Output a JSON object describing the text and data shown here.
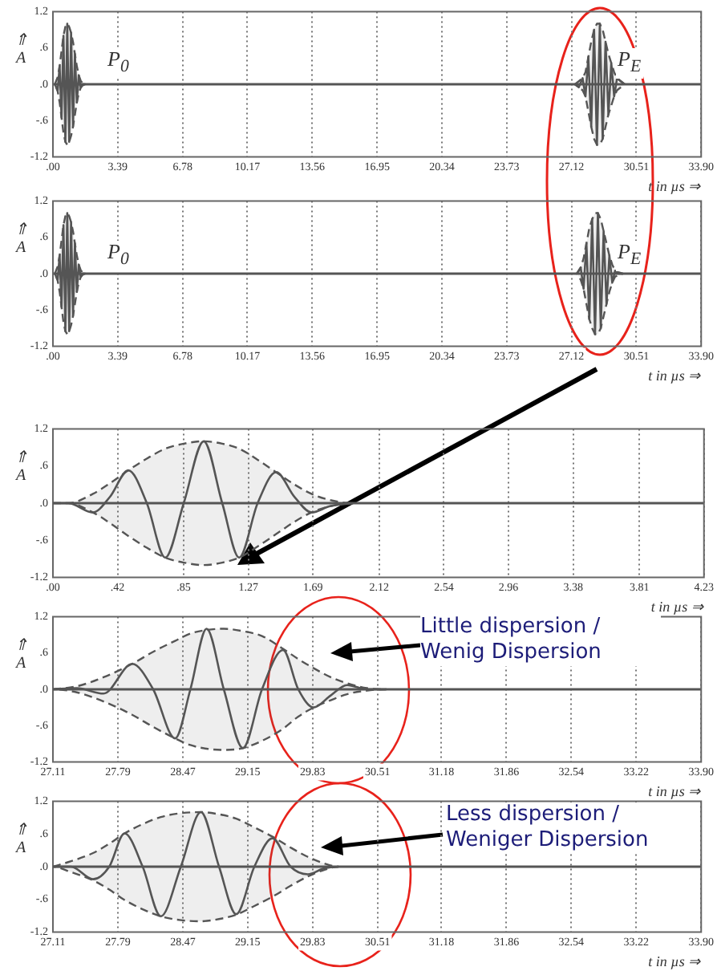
{
  "chart_data": [
    {
      "type": "line",
      "xlabel": "t in µs ⇒",
      "ylabel": "⇑ A",
      "xlim": [
        0,
        33.9
      ],
      "ylim": [
        -1.2,
        1.2
      ],
      "xticks": [
        {
          "value": 0,
          "label": ".00"
        },
        3.39,
        6.78,
        10.17,
        13.56,
        16.95,
        20.34,
        23.73,
        27.12,
        30.51,
        {
          "value": 33.9,
          "label": "33.90"
        }
      ],
      "yticks": [
        {
          "value": -1.2,
          "label": "-1.2"
        },
        {
          "value": -0.6,
          "label": "-.6"
        },
        {
          "value": 0,
          "label": ".0"
        },
        {
          "value": 0.6,
          "label": ".6"
        },
        {
          "value": 1.2,
          "label": "1.2"
        }
      ],
      "grid": "x",
      "ref_lines": [
        {
          "axis": "y",
          "value": 0,
          "color": "#555555"
        }
      ],
      "annotations": [
        "P$_{0}$",
        "P$_{E}$"
      ],
      "series": [
        {
          "color": "#555555",
          "x": [
            0.1,
            0.25,
            0.35,
            0.45,
            0.55,
            0.65,
            0.75,
            0.85,
            0.95,
            1.05,
            1.15,
            1.25,
            1.35,
            1.45,
            1.55,
            1.7
          ],
          "values": [
            0,
            -0.1,
            0.3,
            -0.55,
            0.8,
            -0.95,
            1.0,
            -0.95,
            0.85,
            -0.7,
            0.5,
            -0.3,
            0.15,
            -0.05,
            0,
            0
          ],
          "upper": [
            0,
            0.12,
            0.3,
            0.55,
            0.8,
            0.95,
            1.0,
            0.95,
            0.85,
            0.7,
            0.5,
            0.3,
            0.15,
            0.06,
            0.02,
            0
          ],
          "lower": [
            0,
            -0.12,
            -0.3,
            -0.55,
            -0.8,
            -0.95,
            -1.0,
            -0.95,
            -0.85,
            -0.7,
            -0.5,
            -0.3,
            -0.15,
            -0.06,
            -0.02,
            0
          ]
        },
        {
          "color": "#555555",
          "x": [
            27.3,
            27.5,
            27.7,
            27.85,
            28.0,
            28.15,
            28.3,
            28.45,
            28.6,
            28.75,
            28.9,
            29.05,
            29.2,
            29.35,
            29.5,
            29.7,
            29.9
          ],
          "values": [
            0,
            -0.05,
            0.1,
            -0.2,
            0.45,
            -0.7,
            0.9,
            -1.0,
            1.0,
            -0.9,
            0.7,
            -0.5,
            0.35,
            -0.2,
            0.1,
            0.05,
            0
          ],
          "upper": [
            0,
            0.05,
            0.1,
            0.2,
            0.45,
            0.7,
            0.9,
            1.0,
            1.0,
            0.9,
            0.7,
            0.5,
            0.35,
            0.2,
            0.1,
            0.05,
            0
          ],
          "lower": [
            0,
            -0.05,
            -0.1,
            -0.2,
            -0.45,
            -0.7,
            -0.9,
            -1.0,
            -1.0,
            -0.9,
            -0.7,
            -0.5,
            -0.35,
            -0.2,
            -0.1,
            -0.05,
            0
          ]
        }
      ]
    },
    {
      "type": "line",
      "xlabel": "t in µs ⇒",
      "ylabel": "⇑ A",
      "xlim": [
        0,
        33.9
      ],
      "ylim": [
        -1.2,
        1.2
      ],
      "xticks": [
        {
          "value": 0,
          "label": ".00"
        },
        3.39,
        6.78,
        10.17,
        13.56,
        16.95,
        20.34,
        23.73,
        27.12,
        30.51,
        {
          "value": 33.9,
          "label": "33.90"
        }
      ],
      "yticks": [
        {
          "value": -1.2,
          "label": "-1.2"
        },
        {
          "value": -0.6,
          "label": "-.6"
        },
        {
          "value": 0,
          "label": ".0"
        },
        {
          "value": 0.6,
          "label": ".6"
        },
        {
          "value": 1.2,
          "label": "1.2"
        }
      ],
      "grid": "x",
      "ref_lines": [
        {
          "axis": "y",
          "value": 0,
          "color": "#555555"
        }
      ],
      "annotations": [
        "P$_{0}$",
        "P$_{E}$"
      ],
      "series": [
        {
          "color": "#555555",
          "x": [
            0.1,
            0.25,
            0.35,
            0.45,
            0.55,
            0.65,
            0.75,
            0.85,
            0.95,
            1.05,
            1.15,
            1.25,
            1.35,
            1.45,
            1.55,
            1.7
          ],
          "values": [
            0,
            -0.1,
            0.3,
            -0.55,
            0.8,
            -0.95,
            1.0,
            -0.95,
            0.85,
            -0.7,
            0.5,
            -0.3,
            0.15,
            -0.05,
            0,
            0
          ],
          "upper": [
            0,
            0.12,
            0.3,
            0.55,
            0.8,
            0.95,
            1.0,
            0.95,
            0.85,
            0.7,
            0.5,
            0.3,
            0.15,
            0.06,
            0.02,
            0
          ],
          "lower": [
            0,
            -0.12,
            -0.3,
            -0.55,
            -0.8,
            -0.95,
            -1.0,
            -0.95,
            -0.85,
            -0.7,
            -0.5,
            -0.3,
            -0.15,
            -0.06,
            -0.02,
            0
          ]
        },
        {
          "color": "#555555",
          "x": [
            27.4,
            27.6,
            27.75,
            27.9,
            28.05,
            28.2,
            28.35,
            28.5,
            28.65,
            28.8,
            28.95,
            29.1,
            29.25,
            29.4,
            29.6,
            29.8
          ],
          "values": [
            0,
            0.1,
            -0.25,
            0.5,
            -0.75,
            0.9,
            -1.0,
            1.0,
            -0.9,
            0.7,
            -0.5,
            0.3,
            -0.15,
            0.05,
            0,
            0
          ],
          "upper": [
            0,
            0.1,
            0.25,
            0.5,
            0.75,
            0.9,
            1.0,
            1.0,
            0.9,
            0.7,
            0.5,
            0.3,
            0.15,
            0.05,
            0.02,
            0
          ],
          "lower": [
            0,
            -0.1,
            -0.25,
            -0.5,
            -0.75,
            -0.9,
            -1.0,
            -1.0,
            -0.9,
            -0.7,
            -0.5,
            -0.3,
            -0.15,
            -0.05,
            -0.02,
            0
          ]
        }
      ]
    },
    {
      "type": "line",
      "xlabel": "t in µs ⇒",
      "ylabel": "⇑ A",
      "xlim": [
        0,
        4.23
      ],
      "ylim": [
        -1.2,
        1.2
      ],
      "xticks": [
        {
          "value": 0,
          "label": ".00"
        },
        {
          "value": 0.42,
          "label": ".42"
        },
        {
          "value": 0.85,
          "label": ".85"
        },
        1.27,
        1.69,
        2.12,
        2.54,
        2.96,
        3.38,
        3.81,
        4.23
      ],
      "yticks": [
        {
          "value": -1.2,
          "label": "-1.2"
        },
        {
          "value": -0.6,
          "label": "-.6"
        },
        {
          "value": 0,
          "label": ".0"
        },
        {
          "value": 0.6,
          "label": ".6"
        },
        {
          "value": 1.2,
          "label": "1.2"
        }
      ],
      "grid": "x",
      "ref_lines": [
        {
          "axis": "y",
          "value": 0,
          "color": "#555555"
        }
      ],
      "series": [
        {
          "color": "#555555",
          "x": [
            0,
            0.1,
            0.26,
            0.37,
            0.49,
            0.61,
            0.73,
            0.85,
            0.98,
            1.1,
            1.21,
            1.33,
            1.45,
            1.57,
            1.68,
            1.8,
            1.95
          ],
          "values": [
            0,
            0,
            -0.15,
            0.1,
            0.53,
            0,
            -0.88,
            0,
            1.0,
            0,
            -0.88,
            0,
            0.5,
            0.1,
            -0.15,
            -0.05,
            0
          ],
          "upper": [
            0,
            0,
            0.15,
            0.32,
            0.53,
            0.72,
            0.88,
            0.96,
            1.0,
            0.96,
            0.88,
            0.7,
            0.5,
            0.3,
            0.15,
            0.05,
            0
          ],
          "lower": [
            0,
            0,
            -0.15,
            -0.32,
            -0.53,
            -0.72,
            -0.88,
            -0.96,
            -1.0,
            -0.96,
            -0.88,
            -0.7,
            -0.5,
            -0.3,
            -0.15,
            -0.05,
            0
          ]
        }
      ]
    },
    {
      "type": "line",
      "xlabel": "t in µs ⇒",
      "ylabel": "⇑ A",
      "xlim": [
        27.11,
        33.9
      ],
      "ylim": [
        -1.2,
        1.2
      ],
      "xticks": [
        27.11,
        27.79,
        28.47,
        29.15,
        29.83,
        30.51,
        31.18,
        31.86,
        32.54,
        33.22,
        {
          "value": 33.9,
          "label": "33.90"
        }
      ],
      "yticks": [
        {
          "value": -1.2,
          "label": "-1.2"
        },
        {
          "value": -0.6,
          "label": "-.6"
        },
        {
          "value": 0,
          "label": ".0"
        },
        {
          "value": 0.6,
          "label": ".6"
        },
        {
          "value": 1.2,
          "label": "1.2"
        }
      ],
      "grid": "x",
      "ref_lines": [
        {
          "axis": "y",
          "value": 0,
          "color": "#555555"
        }
      ],
      "annotations": [
        "Little dispersion / Wenig Dispersion"
      ],
      "series": [
        {
          "color": "#555555",
          "x": [
            27.11,
            27.36,
            27.64,
            27.94,
            28.16,
            28.39,
            28.55,
            28.72,
            28.9,
            29.1,
            29.3,
            29.52,
            29.68,
            29.84,
            30.02,
            30.19,
            30.4,
            30.6
          ],
          "values": [
            0,
            0.02,
            -0.07,
            0.42,
            0,
            -0.81,
            0,
            1.0,
            0,
            -0.97,
            0,
            0.65,
            0,
            -0.3,
            -0.1,
            0.07,
            0,
            0
          ],
          "upper": [
            0,
            0.05,
            0.2,
            0.42,
            0.62,
            0.8,
            0.92,
            0.98,
            1.0,
            0.96,
            0.88,
            0.67,
            0.5,
            0.35,
            0.2,
            0.1,
            0.02,
            0
          ],
          "lower": [
            0,
            -0.05,
            -0.2,
            -0.42,
            -0.62,
            -0.81,
            -0.92,
            -0.98,
            -1.0,
            -0.97,
            -0.85,
            -0.65,
            -0.45,
            -0.3,
            -0.18,
            -0.08,
            -0.02,
            0
          ]
        }
      ]
    },
    {
      "type": "line",
      "xlabel": "t in µs ⇒",
      "ylabel": "⇑ A",
      "xlim": [
        27.11,
        33.9
      ],
      "ylim": [
        -1.2,
        1.2
      ],
      "xticks": [
        27.11,
        27.79,
        28.47,
        29.15,
        29.83,
        30.51,
        31.18,
        31.86,
        32.54,
        33.22,
        {
          "value": 33.9,
          "label": "33.90"
        }
      ],
      "yticks": [
        {
          "value": -1.2,
          "label": "-1.2"
        },
        {
          "value": -0.6,
          "label": "-.6"
        },
        {
          "value": 0,
          "label": ".0"
        },
        {
          "value": 0.6,
          "label": ".6"
        },
        {
          "value": 1.2,
          "label": "1.2"
        }
      ],
      "grid": "x",
      "ref_lines": [
        {
          "axis": "y",
          "value": 0,
          "color": "#555555"
        }
      ],
      "annotations": [
        "Less dispersion / Weniger Dispersion"
      ],
      "series": [
        {
          "color": "#555555",
          "x": [
            27.11,
            27.3,
            27.53,
            27.7,
            27.86,
            28.05,
            28.24,
            28.45,
            28.66,
            28.85,
            29.03,
            29.22,
            29.41,
            29.6,
            29.78,
            29.95,
            30.1
          ],
          "values": [
            0,
            0,
            -0.23,
            0,
            0.61,
            0,
            -0.91,
            0,
            1.0,
            0,
            -0.87,
            0,
            0.52,
            0,
            -0.14,
            -0.03,
            0
          ],
          "upper": [
            0,
            0.1,
            0.25,
            0.42,
            0.61,
            0.78,
            0.91,
            0.98,
            1.0,
            0.96,
            0.88,
            0.72,
            0.55,
            0.35,
            0.18,
            0.06,
            0
          ],
          "lower": [
            0,
            -0.1,
            -0.25,
            -0.42,
            -0.61,
            -0.78,
            -0.91,
            -0.98,
            -1.0,
            -0.96,
            -0.88,
            -0.72,
            -0.55,
            -0.35,
            -0.18,
            -0.06,
            0
          ]
        }
      ]
    }
  ]
}
